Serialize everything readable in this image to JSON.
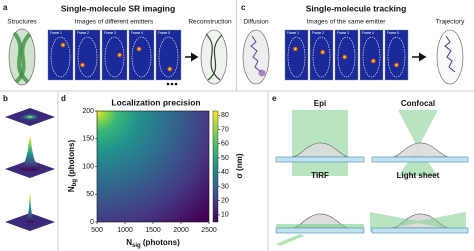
{
  "panel_a": {
    "label": "a",
    "title": "Single-molecule SR imaging",
    "captions": [
      "Structures",
      "Images of different emitters",
      "Reconstruction"
    ],
    "frames": [
      "Frame 1",
      "Frame 2",
      "Frame 3",
      "Frame 4",
      "Frame 5"
    ]
  },
  "panel_c": {
    "label": "c",
    "title": "Single-molecule tracking",
    "captions": [
      "Diffusion",
      "Images of the same emitter",
      "Trajectory"
    ],
    "frames": [
      "Frame 1",
      "Frame 2",
      "Frame 3",
      "Frame 4",
      "Frame 5"
    ]
  },
  "panel_b": {
    "label": "b"
  },
  "panel_e": {
    "label": "e",
    "modes": [
      "Epi",
      "Confocal",
      "TIRF",
      "Light sheet"
    ]
  },
  "chart_data": {
    "type": "heatmap",
    "label": "d",
    "title": "Localization precision",
    "xlabel": {
      "text": "N",
      "sub": "sig",
      "unit": " (photons)"
    },
    "ylabel": {
      "text": "N",
      "sub": "bg",
      "unit": " (photons)"
    },
    "xlim": [
      500,
      2500
    ],
    "xticks": [
      500,
      1000,
      1500,
      2000,
      2500
    ],
    "ylim": [
      0,
      200
    ],
    "yticks": [
      0,
      50,
      100,
      150,
      200
    ],
    "colormap": "viridis",
    "colorbar": {
      "label": "σ (nm)",
      "lim": [
        5,
        83
      ],
      "ticks": [
        10,
        20,
        30,
        40,
        50,
        60,
        70,
        80
      ]
    }
  }
}
